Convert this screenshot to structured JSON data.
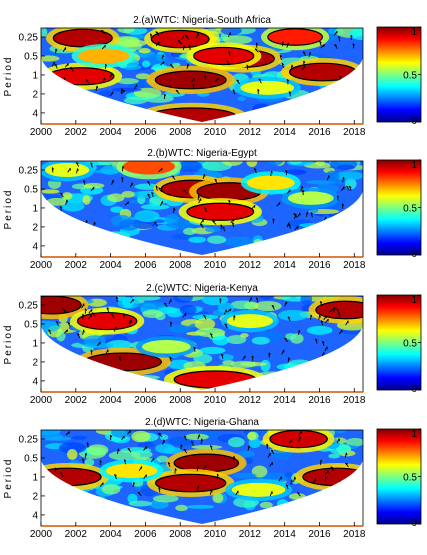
{
  "figure": {
    "ylabel": "Period",
    "colorbar": {
      "colormap": "jet",
      "range": [
        0,
        1
      ],
      "ticks": [
        0,
        0.5,
        1
      ],
      "tick_labels": [
        "0",
        "0.5",
        "1"
      ]
    }
  },
  "chart_data": [
    {
      "type": "heatmap",
      "title": "2.(a)WTC: Nigeria-South Africa",
      "x_ticks": [
        2000,
        2002,
        2004,
        2006,
        2008,
        2010,
        2012,
        2014,
        2016,
        2018
      ],
      "x_tick_labels": [
        "2000",
        "2002",
        "2004",
        "2006",
        "2008",
        "2010",
        "2012",
        "2014",
        "2016",
        "2018"
      ],
      "xlim": [
        2000,
        2018.5
      ],
      "y_ticks": [
        0.25,
        0.5,
        1,
        2,
        4
      ],
      "y_tick_labels": [
        "0.25",
        "0.5",
        "1",
        "2",
        "4"
      ],
      "ylim": [
        0.18,
        6
      ],
      "y_scale": "log2-reversed",
      "ylabel": "Period",
      "colorbar_range": [
        0,
        1
      ],
      "significant_regions": [
        {
          "x": 2002.4,
          "period": 0.26,
          "coherence": 0.95
        },
        {
          "x": 2008.0,
          "period": 0.27,
          "coherence": 0.92
        },
        {
          "x": 2011.6,
          "period": 0.55,
          "coherence": 0.95
        },
        {
          "x": 2010.5,
          "period": 0.5,
          "coherence": 0.9
        },
        {
          "x": 2014.6,
          "period": 0.25,
          "coherence": 0.85
        },
        {
          "x": 2016.2,
          "period": 0.9,
          "coherence": 0.95
        },
        {
          "x": 2002.3,
          "period": 1.05,
          "coherence": 0.9
        },
        {
          "x": 2008.6,
          "period": 1.2,
          "coherence": 0.97
        },
        {
          "x": 2008.7,
          "period": 4.6,
          "coherence": 0.95
        },
        {
          "x": 2003.6,
          "period": 0.5,
          "coherence": 0.7
        },
        {
          "x": 2013.0,
          "period": 1.6,
          "coherence": 0.6
        }
      ]
    },
    {
      "type": "heatmap",
      "title": "2.(b)WTC: Nigeria-Egypt",
      "x_ticks": [
        2000,
        2002,
        2004,
        2006,
        2008,
        2010,
        2012,
        2014,
        2016,
        2018
      ],
      "x_tick_labels": [
        "2000",
        "2002",
        "2004",
        "2006",
        "2008",
        "2010",
        "2012",
        "2014",
        "2016",
        "2018"
      ],
      "xlim": [
        2000,
        2018.5
      ],
      "y_ticks": [
        0.25,
        0.5,
        1,
        2,
        4
      ],
      "y_tick_labels": [
        "0.25",
        "0.5",
        "1",
        "2",
        "4"
      ],
      "ylim": [
        0.18,
        6
      ],
      "y_scale": "log2-reversed",
      "ylabel": "Period",
      "colorbar_range": [
        0,
        1
      ],
      "significant_regions": [
        {
          "x": 2008.7,
          "period": 0.5,
          "coherence": 0.95
        },
        {
          "x": 2010.8,
          "period": 0.55,
          "coherence": 0.97
        },
        {
          "x": 2010.3,
          "period": 1.15,
          "coherence": 0.9
        },
        {
          "x": 2006.2,
          "period": 0.22,
          "coherence": 0.8
        },
        {
          "x": 2001.5,
          "period": 0.25,
          "coherence": 0.6
        },
        {
          "x": 2013.2,
          "period": 0.4,
          "coherence": 0.65
        },
        {
          "x": 2015.5,
          "period": 0.7,
          "coherence": 0.55
        }
      ]
    },
    {
      "type": "heatmap",
      "title": "2.(c)WTC: Nigeria-Kenya",
      "x_ticks": [
        2000,
        2002,
        2004,
        2006,
        2008,
        2010,
        2012,
        2014,
        2016,
        2018
      ],
      "x_tick_labels": [
        "2000",
        "2002",
        "2004",
        "2006",
        "2008",
        "2010",
        "2012",
        "2014",
        "2016",
        "2018"
      ],
      "xlim": [
        2000,
        2018.5
      ],
      "y_ticks": [
        0.25,
        0.5,
        1,
        2,
        4
      ],
      "y_tick_labels": [
        "0.25",
        "0.5",
        "1",
        "2",
        "4"
      ],
      "ylim": [
        0.18,
        6
      ],
      "y_scale": "log2-reversed",
      "ylabel": "Period",
      "colorbar_range": [
        0,
        1
      ],
      "significant_regions": [
        {
          "x": 2000.6,
          "period": 0.25,
          "coherence": 0.97
        },
        {
          "x": 2003.8,
          "period": 0.45,
          "coherence": 0.9
        },
        {
          "x": 2004.7,
          "period": 2.0,
          "coherence": 0.97
        },
        {
          "x": 2010.0,
          "period": 3.8,
          "coherence": 0.9
        },
        {
          "x": 2017.5,
          "period": 0.3,
          "coherence": 0.95
        },
        {
          "x": 2012.0,
          "period": 0.45,
          "coherence": 0.6
        },
        {
          "x": 2007.2,
          "period": 1.15,
          "coherence": 0.55
        }
      ]
    },
    {
      "type": "heatmap",
      "title": "2.(d)WTC: Nigeria-Ghana",
      "x_ticks": [
        2000,
        2002,
        2004,
        2006,
        2008,
        2010,
        2012,
        2014,
        2016,
        2018
      ],
      "x_tick_labels": [
        "2000",
        "2002",
        "2004",
        "2006",
        "2008",
        "2010",
        "2012",
        "2014",
        "2016",
        "2018"
      ],
      "xlim": [
        2000,
        2018.5
      ],
      "y_ticks": [
        0.25,
        0.5,
        1,
        2,
        4
      ],
      "y_tick_labels": [
        "0.25",
        "0.5",
        "1",
        "2",
        "4"
      ],
      "ylim": [
        0.18,
        6
      ],
      "y_scale": "log2-reversed",
      "ylabel": "Period",
      "colorbar_range": [
        0,
        1
      ],
      "significant_regions": [
        {
          "x": 2001.5,
          "period": 1.0,
          "coherence": 0.95
        },
        {
          "x": 2009.5,
          "period": 0.6,
          "coherence": 0.97
        },
        {
          "x": 2008.6,
          "period": 1.25,
          "coherence": 0.95
        },
        {
          "x": 2014.8,
          "period": 0.25,
          "coherence": 0.92
        },
        {
          "x": 2017.0,
          "period": 1.0,
          "coherence": 0.95
        },
        {
          "x": 2005.2,
          "period": 0.8,
          "coherence": 0.65
        },
        {
          "x": 2012.5,
          "period": 1.6,
          "coherence": 0.6
        }
      ]
    }
  ]
}
